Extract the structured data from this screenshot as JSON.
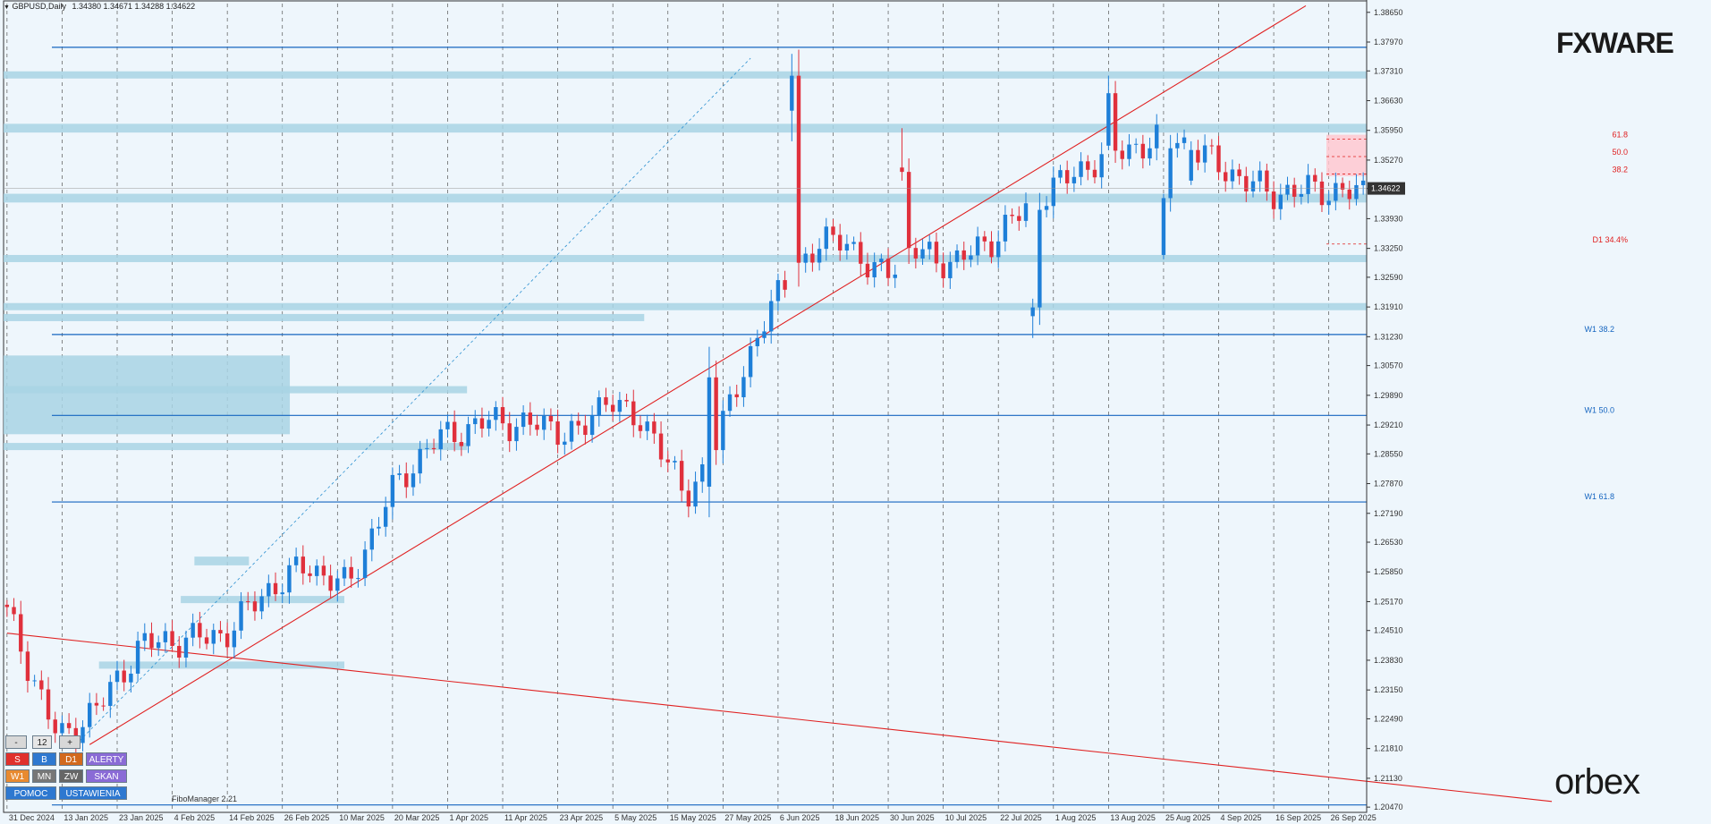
{
  "header": {
    "symbol": "GBPUSD,Daily",
    "ohlc": "1.34380 1.34671 1.34288 1.34622"
  },
  "logos": {
    "top": "FXWARE",
    "bottom": "orbex"
  },
  "indicator_label": "FiboManager 2.21",
  "colors": {
    "background": "#eef6fc",
    "zone": "#a8d4e4",
    "bull": "#1e7fd8",
    "bear": "#e0303c",
    "trend": "#e02020",
    "level": "#1565c0",
    "fib_zone": "#ffc8d0"
  },
  "panel": {
    "minus": "-",
    "count": "12",
    "plus": "+",
    "s": "S",
    "b": "B",
    "d1": "D1",
    "alerty": "ALERTY",
    "w1": "W1",
    "mn": "MN",
    "zw": "ZW",
    "skan": "SKAN",
    "pomoc": "POMOC",
    "ustawienia": "USTAWIENIA"
  },
  "chart_data": {
    "type": "candlestick",
    "symbol": "GBPUSD",
    "timeframe": "Daily",
    "current_price": "1.34622",
    "ylim": [
      1.2035,
      1.3885
    ],
    "y_ticks": [
      "1.38650",
      "1.37970",
      "1.37310",
      "1.36630",
      "1.35950",
      "1.35270",
      "1.34622",
      "1.33930",
      "1.33250",
      "1.32590",
      "1.31910",
      "1.31230",
      "1.30570",
      "1.29890",
      "1.29210",
      "1.28550",
      "1.27870",
      "1.27190",
      "1.26530",
      "1.25850",
      "1.25170",
      "1.24510",
      "1.23830",
      "1.23150",
      "1.22490",
      "1.21810",
      "1.21130",
      "1.20470"
    ],
    "x_ticks": [
      "31 Dec 2024",
      "13 Jan 2025",
      "23 Jan 2025",
      "4 Feb 2025",
      "14 Feb 2025",
      "26 Feb 2025",
      "10 Mar 2025",
      "20 Mar 2025",
      "1 Apr 2025",
      "11 Apr 2025",
      "23 Apr 2025",
      "5 May 2025",
      "15 May 2025",
      "27 May 2025",
      "6 Jun 2025",
      "18 Jun 2025",
      "30 Jun 2025",
      "10 Jul 2025",
      "22 Jul 2025",
      "1 Aug 2025",
      "13 Aug 2025",
      "25 Aug 2025",
      "4 Sep 2025",
      "16 Sep 2025",
      "26 Sep 2025"
    ],
    "n_bars": 198,
    "bars_per_tick": 8,
    "anchors": [
      [
        0,
        1.251
      ],
      [
        8,
        1.22
      ],
      [
        14,
        1.228
      ],
      [
        20,
        1.242
      ],
      [
        32,
        1.244
      ],
      [
        38,
        1.254
      ],
      [
        44,
        1.26
      ],
      [
        50,
        1.255
      ],
      [
        56,
        1.276
      ],
      [
        62,
        1.288
      ],
      [
        70,
        1.293
      ],
      [
        78,
        1.292
      ],
      [
        84,
        1.29
      ],
      [
        88,
        1.3
      ],
      [
        91,
        1.293
      ],
      [
        95,
        1.29
      ],
      [
        99,
        1.274
      ],
      [
        104,
        1.29
      ],
      [
        110,
        1.315
      ],
      [
        116,
        1.33
      ],
      [
        122,
        1.336
      ],
      [
        126,
        1.326
      ],
      [
        132,
        1.332
      ],
      [
        138,
        1.329
      ],
      [
        144,
        1.335
      ],
      [
        148,
        1.341
      ],
      [
        152,
        1.346
      ],
      [
        160,
        1.354
      ],
      [
        170,
        1.358
      ],
      [
        178,
        1.35
      ],
      [
        184,
        1.345
      ],
      [
        190,
        1.346
      ],
      [
        198,
        1.345
      ]
    ],
    "bar_overrides": [
      [
        102,
        1.278,
        1.31,
        1.271,
        1.303
      ],
      [
        114,
        1.364,
        1.377,
        1.357,
        1.372
      ],
      [
        130,
        1.351,
        1.36,
        1.348,
        1.35
      ],
      [
        149,
        1.317,
        1.321,
        1.312,
        1.319
      ],
      [
        160,
        1.356,
        1.372,
        1.355,
        1.368
      ],
      [
        168,
        1.331,
        1.345,
        1.33,
        1.344
      ],
      [
        172,
        1.348,
        1.357,
        1.347,
        1.355
      ]
    ],
    "zones": [
      {
        "from": 0.0,
        "to": 1.0,
        "y1": 1.3725,
        "y2": 1.373
      },
      {
        "from": 0.0,
        "to": 1.0,
        "y1": 1.359,
        "y2": 1.361
      },
      {
        "from": 0.0,
        "to": 1.0,
        "y1": 1.345,
        "y2": 1.343
      },
      {
        "from": 0.0,
        "to": 1.0,
        "y1": 1.331,
        "y2": 1.3295
      },
      {
        "from": 0.0,
        "to": 1.0,
        "y1": 1.32,
        "y2": 1.3185
      },
      {
        "from": 0.0,
        "to": 0.47,
        "y1": 1.3175,
        "y2": 1.316
      },
      {
        "from": 0.0,
        "to": 0.21,
        "y1": 1.308,
        "y2": 1.29
      },
      {
        "from": 0.0,
        "to": 0.34,
        "y1": 1.301,
        "y2": 1.3
      },
      {
        "from": 0.0,
        "to": 0.34,
        "y1": 1.288,
        "y2": 1.287
      },
      {
        "from": 0.14,
        "to": 0.18,
        "y1": 1.262,
        "y2": 1.26
      },
      {
        "from": 0.13,
        "to": 0.25,
        "y1": 1.253,
        "y2": 1.252
      },
      {
        "from": 0.07,
        "to": 0.25,
        "y1": 1.238,
        "y2": 1.237
      }
    ],
    "levels": [
      {
        "label": "",
        "y": 1.3785
      },
      {
        "label": "W1 38.2",
        "y": 1.3128
      },
      {
        "label": "W1 50.0",
        "y": 1.2943
      },
      {
        "label": "W1 61.8",
        "y": 1.2745
      },
      {
        "label": "",
        "y": 1.2052
      }
    ],
    "fib_d1": {
      "levels": [
        {
          "label": "61.8",
          "y": 1.3575
        },
        {
          "label": "50.0",
          "y": 1.3535
        },
        {
          "label": "38.2",
          "y": 1.3495
        },
        {
          "label": "D1 34.4%",
          "y": 1.3335
        }
      ],
      "zone": [
        1.3585,
        1.349
      ]
    }
  }
}
